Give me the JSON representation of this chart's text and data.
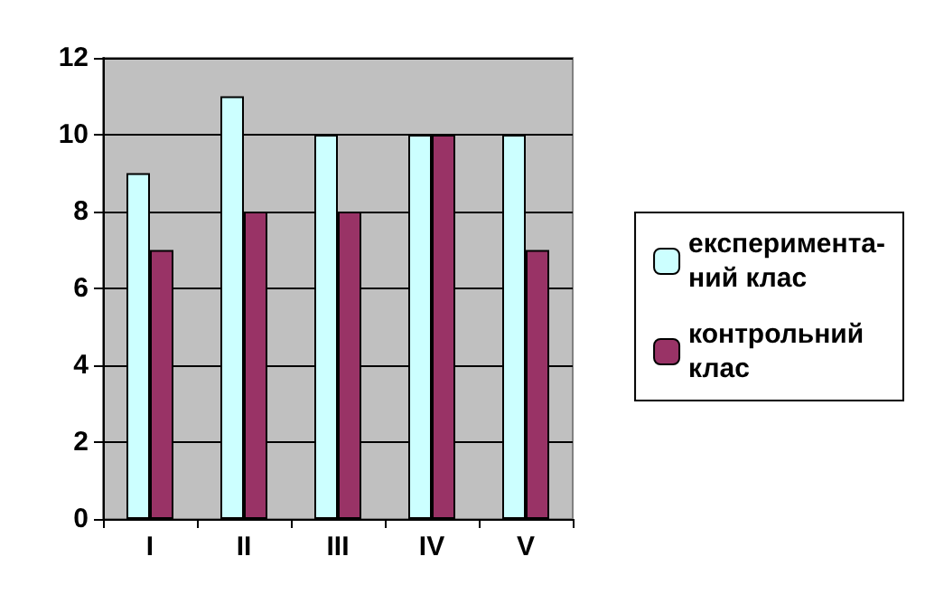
{
  "chart_data": {
    "type": "bar",
    "categories": [
      "I",
      "II",
      "III",
      "IV",
      "V"
    ],
    "series": [
      {
        "name": "експеримента-\nний клас",
        "color": "#ccffff",
        "values": [
          9,
          11,
          10,
          10,
          10
        ]
      },
      {
        "name": "контрольний\nклас",
        "color": "#993366",
        "values": [
          7,
          8,
          8,
          10,
          7
        ]
      }
    ],
    "ylim": [
      0,
      12
    ],
    "yticks": [
      0,
      2,
      4,
      6,
      8,
      10,
      12
    ],
    "grid": "y",
    "legend": "right"
  }
}
